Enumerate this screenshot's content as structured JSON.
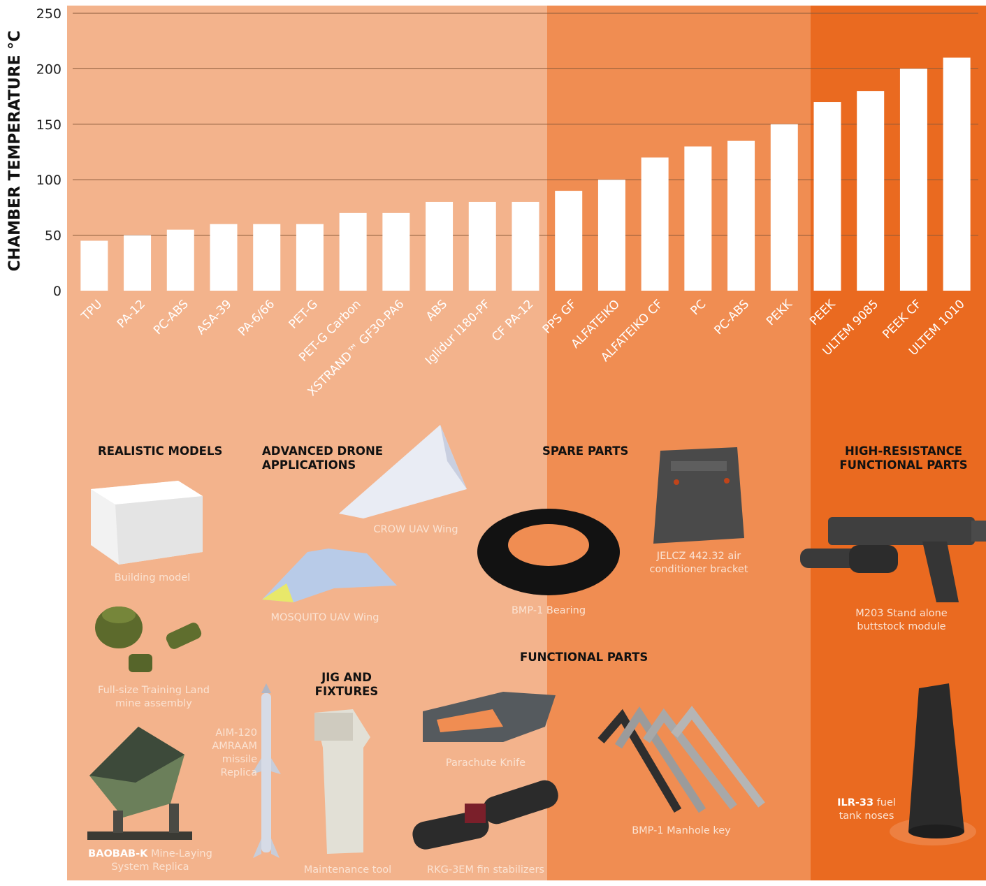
{
  "colors": {
    "band_low": "#f3b38c",
    "band_mid": "#f08d52",
    "band_high": "#ea6a20",
    "bar": "#ffffff",
    "grid": "#8a5a3a"
  },
  "chart_data": {
    "type": "bar",
    "ylabel": "CHAMBER TEMPERATURE °C",
    "ylim": [
      0,
      250
    ],
    "yticks": [
      0,
      50,
      100,
      150,
      200,
      250
    ],
    "grid": true,
    "categories": [
      "TPU",
      "PA-12",
      "PC-ABS",
      "ASA-39",
      "PA-6/66",
      "PET-G",
      "PET-G Carbon",
      "XSTRAND™ GF30-PA6",
      "ABS",
      "Iglidur I180-PF",
      "CF PA-12",
      "PPS GF",
      "ALFATEIKO",
      "ALFATEIKO CF",
      "PC",
      "PC-ABS",
      "PEKK",
      "PEEK",
      "ULTEM 9085",
      "PEEK CF",
      "ULTEM 1010"
    ],
    "values": [
      45,
      50,
      55,
      60,
      60,
      60,
      70,
      70,
      80,
      80,
      80,
      90,
      100,
      120,
      130,
      135,
      150,
      170,
      180,
      200,
      210
    ]
  },
  "sections": {
    "realistic": {
      "heading": "REALISTIC MODELS",
      "captions": {
        "building": "Building model",
        "landmine": "Full-size Training Land mine assembly",
        "baobab_bold": "BAOBAB-K",
        "baobab_rest": " Mine-Laying System Replica"
      }
    },
    "drone": {
      "heading": "ADVANCED DRONE APPLICATIONS",
      "captions": {
        "crow": "CROW UAV Wing",
        "mosquito": "MOSQUITO UAV Wing",
        "aim": "AIM-120 AMRAAM missile Replica"
      }
    },
    "jig": {
      "heading": "JIG AND FIXTURES",
      "captions": {
        "tool": "Maintenance tool"
      }
    },
    "spare": {
      "heading": "SPARE PARTS",
      "captions": {
        "bearing": "BMP-1 Bearing",
        "jelcz": "JELCZ 442.32 air conditioner bracket"
      }
    },
    "functional": {
      "heading": "FUNCTIONAL PARTS",
      "captions": {
        "knife": "Parachute Knife",
        "rkg": "RKG-3EM fin stabilizers",
        "manhole": "BMP-1 Manhole key"
      }
    },
    "high": {
      "heading": "HIGH-RESISTANCE FUNCTIONAL PARTS",
      "captions": {
        "m203": "M203 Stand alone buttstock module",
        "ilr_bold": "ILR-33",
        "ilr_rest": " fuel tank noses"
      }
    }
  }
}
